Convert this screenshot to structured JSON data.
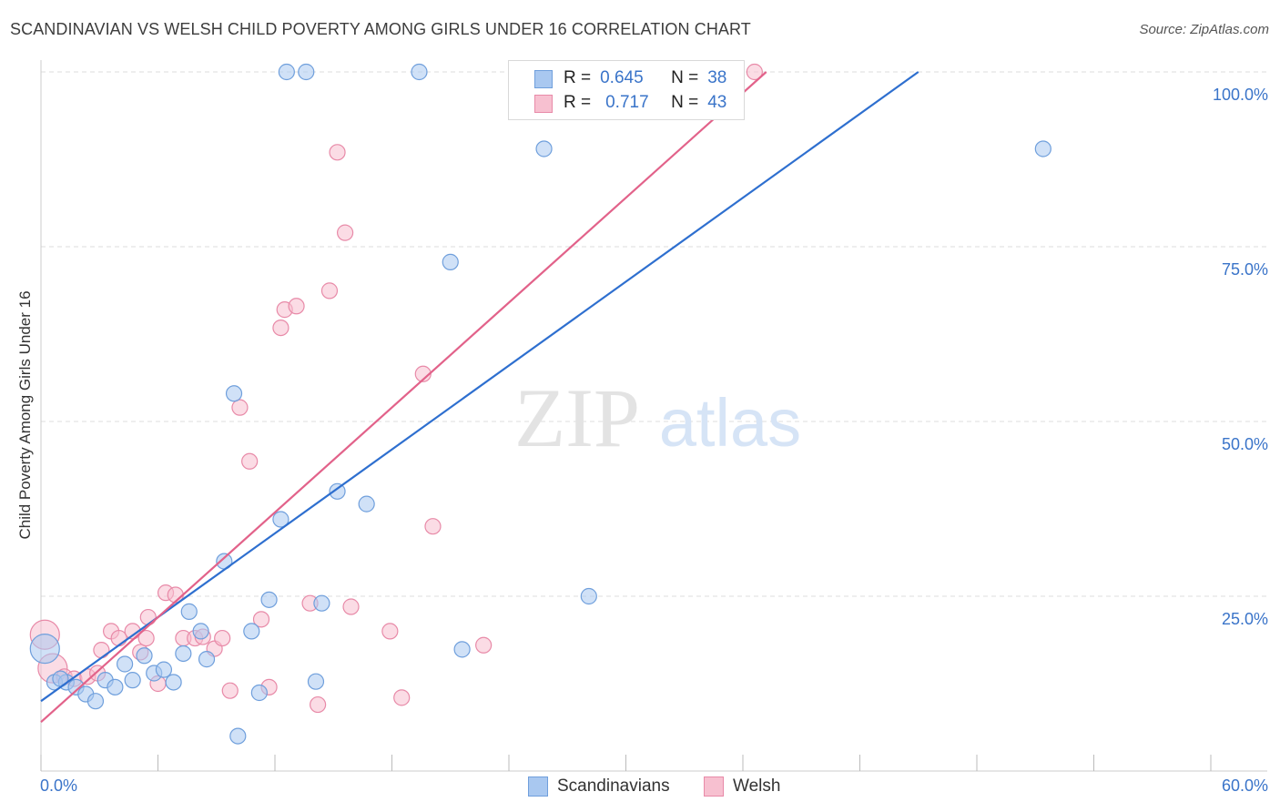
{
  "title": "SCANDINAVIAN VS WELSH CHILD POVERTY AMONG GIRLS UNDER 16 CORRELATION CHART",
  "source": "Source: ZipAtlas.com",
  "watermark": {
    "zip": "ZIP",
    "atlas": "atlas"
  },
  "legend": {
    "r_label": "R =",
    "n_label": "N =",
    "scandinavians": {
      "r": "0.645",
      "n": "38"
    },
    "welsh": {
      "r": "0.717",
      "n": "43"
    }
  },
  "colors": {
    "scandinavians_fill": "#a9c8f0",
    "scandinavians_stroke": "#6f9fdc",
    "scandinavians_line": "#2e6fcf",
    "welsh_fill": "#f7c0d0",
    "welsh_stroke": "#e88aa8",
    "welsh_line": "#e2628a",
    "axis_text": "#3a74c9",
    "grid": "#dddddd"
  },
  "chart_data": {
    "type": "scatter",
    "title": "SCANDINAVIAN VS WELSH CHILD POVERTY AMONG GIRLS UNDER 16 CORRELATION CHART",
    "xlabel": "",
    "ylabel": "Child Poverty Among Girls Under 16",
    "xlim": [
      0,
      60
    ],
    "ylim": [
      0,
      103
    ],
    "x_tick_labels": [
      "0.0%",
      "60.0%"
    ],
    "y_ticks": [
      25,
      50,
      75,
      100
    ],
    "y_tick_labels": [
      "25.0%",
      "50.0%",
      "75.0%",
      "100.0%"
    ],
    "grid": "horizontal dashed",
    "legend_position": "top-center",
    "series": [
      {
        "name": "Scandinavians",
        "r": 0.645,
        "n": 38,
        "trend": {
          "x": [
            0,
            45
          ],
          "y": [
            10,
            100
          ]
        },
        "points": [
          {
            "x": 0.2,
            "y": 17.5,
            "big": true
          },
          {
            "x": 0.7,
            "y": 12.7
          },
          {
            "x": 1.3,
            "y": 12.7
          },
          {
            "x": 1.8,
            "y": 12
          },
          {
            "x": 2.3,
            "y": 11
          },
          {
            "x": 2.8,
            "y": 10
          },
          {
            "x": 3.3,
            "y": 13
          },
          {
            "x": 3.8,
            "y": 12
          },
          {
            "x": 4.3,
            "y": 15.3
          },
          {
            "x": 4.7,
            "y": 13
          },
          {
            "x": 5.3,
            "y": 16.5
          },
          {
            "x": 5.8,
            "y": 14
          },
          {
            "x": 6.3,
            "y": 14.5
          },
          {
            "x": 6.8,
            "y": 12.7
          },
          {
            "x": 7.3,
            "y": 16.8
          },
          {
            "x": 7.6,
            "y": 22.8
          },
          {
            "x": 8.2,
            "y": 20
          },
          {
            "x": 8.5,
            "y": 16
          },
          {
            "x": 9.4,
            "y": 30
          },
          {
            "x": 9.9,
            "y": 54
          },
          {
            "x": 10.1,
            "y": 5
          },
          {
            "x": 10.8,
            "y": 20
          },
          {
            "x": 11.2,
            "y": 11.2
          },
          {
            "x": 11.7,
            "y": 24.5
          },
          {
            "x": 12.3,
            "y": 36
          },
          {
            "x": 12.6,
            "y": 100
          },
          {
            "x": 13.6,
            "y": 100
          },
          {
            "x": 14.1,
            "y": 12.8
          },
          {
            "x": 14.4,
            "y": 24
          },
          {
            "x": 15.2,
            "y": 40
          },
          {
            "x": 16.7,
            "y": 38.2
          },
          {
            "x": 19.4,
            "y": 100
          },
          {
            "x": 21,
            "y": 72.8
          },
          {
            "x": 21.6,
            "y": 17.4
          },
          {
            "x": 25.8,
            "y": 89
          },
          {
            "x": 28.1,
            "y": 25
          },
          {
            "x": 51.4,
            "y": 89
          },
          {
            "x": 1,
            "y": 13.2
          }
        ]
      },
      {
        "name": "Welsh",
        "r": 0.717,
        "n": 43,
        "trend": {
          "x": [
            0,
            37.2
          ],
          "y": [
            7,
            100
          ]
        },
        "points": [
          {
            "x": 0.2,
            "y": 19.5,
            "big": true
          },
          {
            "x": 0.6,
            "y": 14.7,
            "big": true
          },
          {
            "x": 1.2,
            "y": 13.5
          },
          {
            "x": 1.7,
            "y": 13.2
          },
          {
            "x": 2.4,
            "y": 13.5
          },
          {
            "x": 2.9,
            "y": 14
          },
          {
            "x": 3.1,
            "y": 17.3
          },
          {
            "x": 3.6,
            "y": 20
          },
          {
            "x": 4,
            "y": 19
          },
          {
            "x": 4.7,
            "y": 20
          },
          {
            "x": 5.1,
            "y": 17
          },
          {
            "x": 5.4,
            "y": 19
          },
          {
            "x": 5.5,
            "y": 22
          },
          {
            "x": 6,
            "y": 12.5
          },
          {
            "x": 6.4,
            "y": 25.5
          },
          {
            "x": 6.9,
            "y": 25.2
          },
          {
            "x": 7.3,
            "y": 19
          },
          {
            "x": 7.9,
            "y": 19
          },
          {
            "x": 8.3,
            "y": 19.2
          },
          {
            "x": 8.9,
            "y": 17.5
          },
          {
            "x": 9.3,
            "y": 19
          },
          {
            "x": 9.7,
            "y": 11.5
          },
          {
            "x": 10.2,
            "y": 52
          },
          {
            "x": 10.7,
            "y": 44.3
          },
          {
            "x": 11.3,
            "y": 21.7
          },
          {
            "x": 11.7,
            "y": 12
          },
          {
            "x": 12.3,
            "y": 63.4
          },
          {
            "x": 12.5,
            "y": 66
          },
          {
            "x": 13.1,
            "y": 66.5
          },
          {
            "x": 13.8,
            "y": 24
          },
          {
            "x": 14.2,
            "y": 9.5
          },
          {
            "x": 14.8,
            "y": 68.7
          },
          {
            "x": 15.2,
            "y": 88.5
          },
          {
            "x": 15.6,
            "y": 77
          },
          {
            "x": 15.9,
            "y": 23.5
          },
          {
            "x": 17.9,
            "y": 20
          },
          {
            "x": 18.5,
            "y": 10.5
          },
          {
            "x": 19.6,
            "y": 56.8
          },
          {
            "x": 20.1,
            "y": 35
          },
          {
            "x": 22.7,
            "y": 18
          },
          {
            "x": 24.7,
            "y": 100
          },
          {
            "x": 31.2,
            "y": 100
          },
          {
            "x": 36.6,
            "y": 100
          }
        ]
      }
    ]
  },
  "bottom_legend": [
    "Scandinavians",
    "Welsh"
  ]
}
